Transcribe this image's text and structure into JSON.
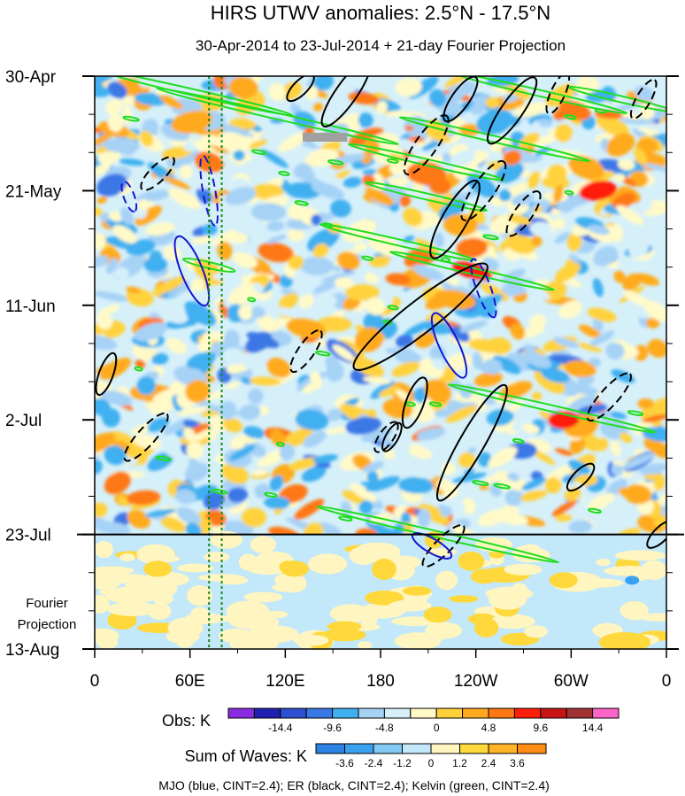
{
  "chart_data": {
    "type": "heatmap",
    "title": "HIRS UTWV anomalies: 2.5°N - 17.5°N",
    "subtitle": "30-Apr-2014 to 23-Jul-2014 + 21-day Fourier Projection",
    "ylabels": [
      "30-Apr",
      "21-May",
      "11-Jun",
      "2-Jul",
      "23-Jul",
      "13-Aug"
    ],
    "ylabel_days": [
      0,
      21,
      42,
      63,
      84,
      105
    ],
    "y_range_days": [
      0,
      105
    ],
    "projection_start_day": 84,
    "projection_label": [
      "Fourier",
      "Projection"
    ],
    "xlabels": [
      "0",
      "60E",
      "120E",
      "180",
      "120W",
      "60W",
      "0"
    ],
    "x_lon_east": [
      0,
      60,
      120,
      180,
      240,
      300,
      360
    ],
    "x_range_lon_east": [
      0,
      360
    ],
    "reference_lines_lon_east": [
      72,
      80
    ],
    "obs_legend": {
      "title": "Obs: K",
      "tick_labels": [
        "-14.4",
        "-9.6",
        "-4.8",
        "0",
        "4.8",
        "9.6",
        "14.4"
      ],
      "colors": [
        "#8a2be2",
        "#2020b0",
        "#2d50d2",
        "#3a78e6",
        "#40b0f0",
        "#a6d2f6",
        "#d6f0fa",
        "#fffac8",
        "#ffd23c",
        "#ffaa1e",
        "#ff7814",
        "#ff1e0a",
        "#c81414",
        "#a03232",
        "#ff64c8"
      ]
    },
    "waves_legend": {
      "title": "Sum of Waves: K",
      "tick_labels": [
        "-3.6",
        "-2.4",
        "-1.2",
        "0",
        "1.2",
        "2.4",
        "3.6"
      ],
      "colors": [
        "#2d82e6",
        "#3aa0f0",
        "#82c8f5",
        "#c3e8fa",
        "#fff5c0",
        "#ffd83c",
        "#ffb428",
        "#ff8c14"
      ]
    },
    "contours_note": "MJO (blue, CINT=2.4); ER (black, CINT=2.4); Kelvin (green, CINT=2.4)",
    "series": [
      {
        "name": "MJO",
        "color": "#1515d0"
      },
      {
        "name": "ER",
        "color": "#000000"
      },
      {
        "name": "Kelvin",
        "color": "#22dd22"
      }
    ]
  }
}
